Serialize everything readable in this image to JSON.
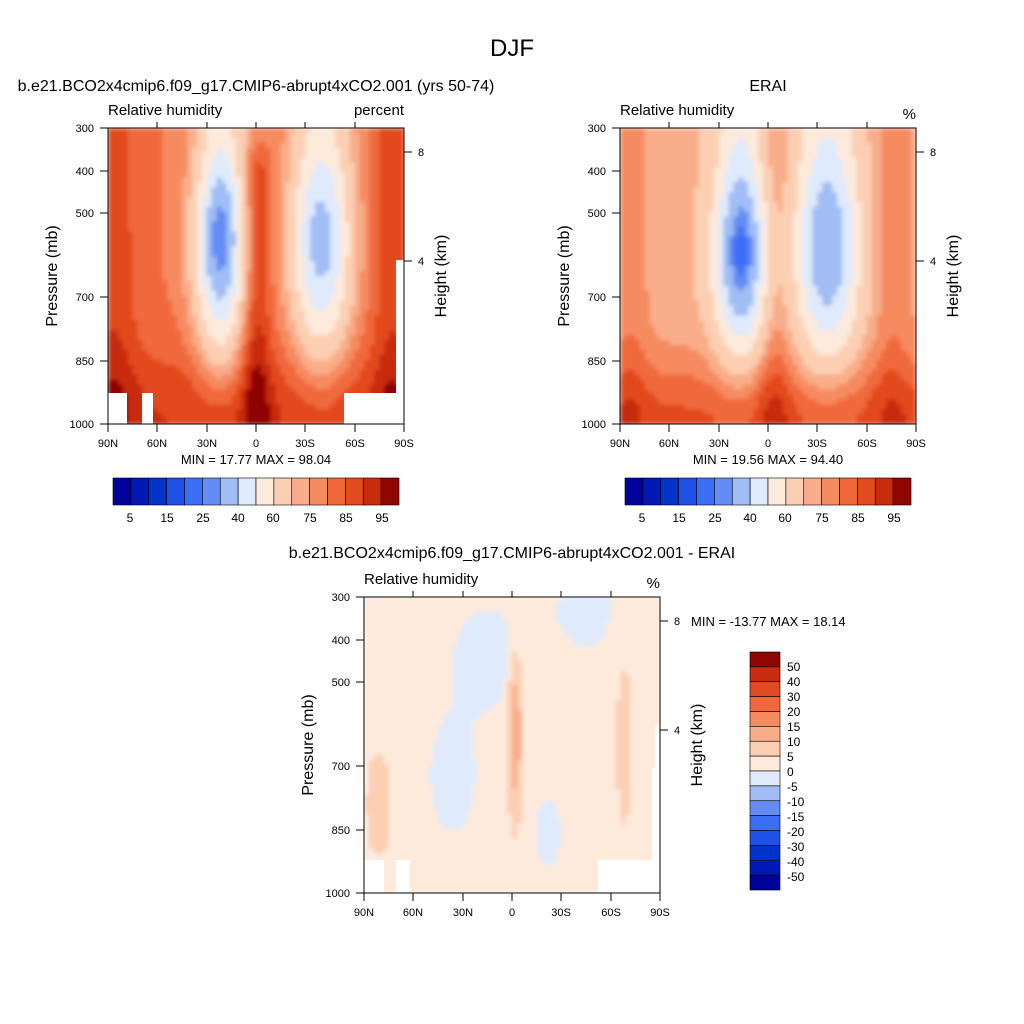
{
  "figure": {
    "title": "DJF"
  },
  "chart_data": [
    {
      "type": "heatmap",
      "title": "b.e21.BCO2x4cmip6.f09_g17.CMIP6-abrupt4xCO2.001 (yrs 50-74)",
      "subtitle_left": "Relative humidity",
      "subtitle_right": "percent",
      "ylabel": "Pressure (mb)",
      "y2label": "Height (km)",
      "x_ticks": [
        "90N",
        "60N",
        "30N",
        "0",
        "30S",
        "60S",
        "90S"
      ],
      "y_ticks": [
        "300",
        "400",
        "500",
        "700",
        "850",
        "1000"
      ],
      "y2_ticks": [
        "8",
        "4"
      ],
      "y_scale": "log-pressure",
      "stats_text": "MIN =  17.77  MAX =  98.04",
      "min": 17.77,
      "max": 98.04,
      "colorbar": {
        "orientation": "horizontal",
        "labels": [
          "5",
          "15",
          "25",
          "40",
          "60",
          "75",
          "85",
          "95"
        ],
        "levels": [
          5,
          10,
          15,
          20,
          25,
          30,
          40,
          50,
          60,
          70,
          75,
          80,
          85,
          90,
          95
        ]
      }
    },
    {
      "type": "heatmap",
      "title": "ERAI",
      "subtitle_left": "Relative humidity",
      "subtitle_right": "%",
      "ylabel": "Pressure (mb)",
      "y2label": "Height (km)",
      "x_ticks": [
        "90N",
        "60N",
        "30N",
        "0",
        "30S",
        "60S",
        "90S"
      ],
      "y_ticks": [
        "300",
        "400",
        "500",
        "700",
        "850",
        "1000"
      ],
      "y2_ticks": [
        "8",
        "4"
      ],
      "y_scale": "log-pressure",
      "stats_text": "MIN =  19.56  MAX =  94.40",
      "min": 19.56,
      "max": 94.4,
      "colorbar": {
        "orientation": "horizontal",
        "labels": [
          "5",
          "15",
          "25",
          "40",
          "60",
          "75",
          "85",
          "95"
        ],
        "levels": [
          5,
          10,
          15,
          20,
          25,
          30,
          40,
          50,
          60,
          70,
          75,
          80,
          85,
          90,
          95
        ]
      }
    },
    {
      "type": "heatmap",
      "title": "b.e21.BCO2x4cmip6.f09_g17.CMIP6-abrupt4xCO2.001 - ERAI",
      "subtitle_left": "Relative humidity",
      "subtitle_right": "%",
      "ylabel": "Pressure (mb)",
      "y2label": "Height (km)",
      "x_ticks": [
        "90N",
        "60N",
        "30N",
        "0",
        "30S",
        "60S",
        "90S"
      ],
      "y_ticks": [
        "300",
        "400",
        "500",
        "700",
        "850",
        "1000"
      ],
      "y2_ticks": [
        "8",
        "4"
      ],
      "y_scale": "log-pressure",
      "stats_text": "MIN = -13.77  MAX =  18.14",
      "min": -13.77,
      "max": 18.14,
      "colorbar": {
        "orientation": "vertical",
        "labels": [
          "50",
          "40",
          "30",
          "20",
          "15",
          "10",
          "5",
          "0",
          "-5",
          "-10",
          "-15",
          "-20",
          "-30",
          "-40",
          "-50"
        ]
      }
    }
  ]
}
